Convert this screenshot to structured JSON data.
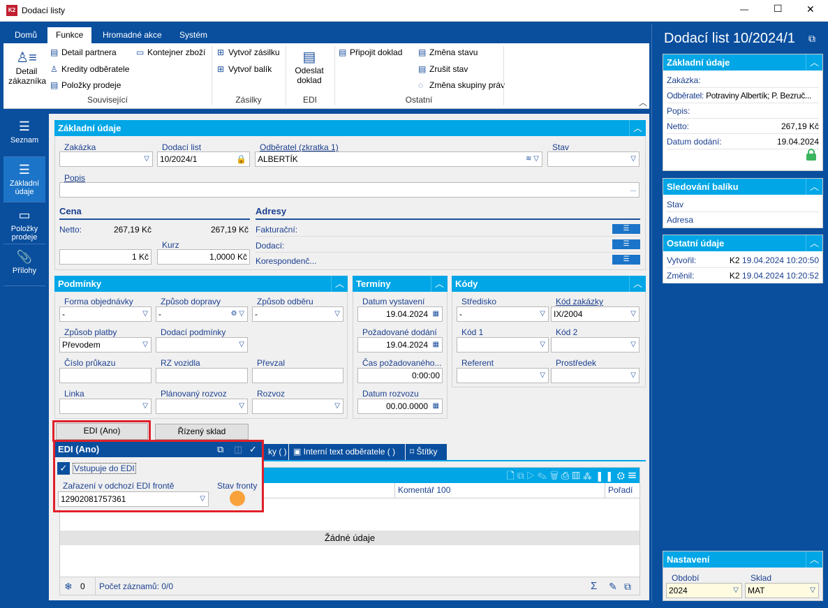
{
  "window": {
    "title": "Dodací listy",
    "controls": {
      "minimize": "—",
      "maximize": "☐",
      "close": "✕"
    }
  },
  "ribbon": {
    "tabs": [
      "Domů",
      "Funkce",
      "Hromadné akce",
      "Systém"
    ],
    "selected_tab": "Funkce",
    "souvisejici": {
      "detail_zakaznika_1": "Detail",
      "detail_zakaznika_2": "zákazníka",
      "detail_partnera": "Detail partnera",
      "kredity": "Kredity odběratele",
      "polozky": "Položky prodeje",
      "kontejner": "Kontejner zboží",
      "group": "Související"
    },
    "zasilky": {
      "vytvor_zasilku": "Vytvoř zásilku",
      "vytvor_balik": "Vytvoř balík",
      "group": "Zásilky"
    },
    "edi": {
      "odeslat_1": "Odeslat",
      "odeslat_2": "doklad",
      "group": "EDI"
    },
    "ostatni": {
      "pripojit": "Připojit doklad",
      "zmena_stavu": "Změna stavu",
      "zrusit_stav": "Zrušit stav",
      "zmena_skupiny": "Změna skupiny práv",
      "group": "Ostatní"
    }
  },
  "leftnav": [
    {
      "label": "Seznam",
      "icon": "menu-icon"
    },
    {
      "label": "Základní údaje",
      "icon": "list-icon",
      "selected": true
    },
    {
      "label": "Položky prodeje",
      "icon": "box-icon"
    },
    {
      "label": "Přílohy",
      "icon": "paperclip-icon"
    }
  ],
  "zakladni": {
    "title": "Základní údaje",
    "zakazka": {
      "label": "Zakázka",
      "value": ""
    },
    "dodaci_list": {
      "label": "Dodací list",
      "value": "10/2024/1"
    },
    "odberatel": {
      "label": "Odběratel (zkratka 1)",
      "value": "ALBERTÍK"
    },
    "stav": {
      "label": "Stav",
      "value": ""
    },
    "popis": {
      "label": "Popis",
      "value": "",
      "more": "..."
    },
    "cena": {
      "title": "Cena",
      "netto_label": "Netto:",
      "netto1": "267,19 Kč",
      "netto2": "267,19 Kč",
      "kurz_label": "Kurz",
      "mena": "1 Kč",
      "kurz": "1,0000 Kč"
    },
    "adresy": {
      "title": "Adresy",
      "fakturacni": "Fakturační:",
      "dodaci": "Dodací:",
      "koresp": "Korespondenč..."
    }
  },
  "podminky": {
    "title": "Podmínky",
    "forma": {
      "label": "Forma objednávky",
      "value": "-"
    },
    "doprava": {
      "label": "Způsob dopravy",
      "value": "-"
    },
    "odber": {
      "label": "Způsob odběru",
      "value": "-"
    },
    "platba": {
      "label": "Způsob platby",
      "value": "Převodem"
    },
    "dod_podminky": {
      "label": "Dodací podmínky",
      "value": ""
    },
    "prukaz": {
      "label": "Číslo průkazu",
      "value": ""
    },
    "rz": {
      "label": "RZ vozidla",
      "value": ""
    },
    "prevzal": {
      "label": "Převzal",
      "value": ""
    },
    "linka": {
      "label": "Linka",
      "value": ""
    },
    "plan_rozvoz": {
      "label": "Plánovaný rozvoz",
      "value": ""
    },
    "rozvoz": {
      "label": "Rozvoz",
      "value": ""
    }
  },
  "terminy": {
    "title": "Termíny",
    "vystaveni": {
      "label": "Datum vystavení",
      "value": "19.04.2024"
    },
    "pozadovane": {
      "label": "Požadované dodání",
      "value": "19.04.2024"
    },
    "cas": {
      "label": "Čas požadovaného...",
      "value": "0:00:00"
    },
    "rozvoz": {
      "label": "Datum rozvozu",
      "value": "00.00.0000"
    }
  },
  "kody": {
    "title": "Kódy",
    "stredisko": {
      "label": "Středisko",
      "value": "-"
    },
    "kod_zakazky": {
      "label": "Kód zakázky",
      "value": "IX/2004"
    },
    "kod1": {
      "label": "Kód 1",
      "value": ""
    },
    "kod2": {
      "label": "Kód 2",
      "value": ""
    },
    "referent": {
      "label": "Referent",
      "value": ""
    },
    "prostredek": {
      "label": "Prostředek",
      "value": ""
    }
  },
  "buttons": {
    "edi": "EDI (Ano)",
    "rizeny_sklad": "Řízený sklad"
  },
  "detail_tabs": [
    "ky ( )",
    "Interní text odběratele ( )",
    "Štítky"
  ],
  "grid": {
    "columns": [
      "Komentář 100",
      "Pořadí"
    ],
    "empty": "Žádné údaje",
    "count": "0",
    "records": "Počet záznamů: 0/0"
  },
  "edi_popup": {
    "title": "EDI (Ano)",
    "checkbox_label": "Vstupuje do EDI",
    "checked": true,
    "zarazeni_label": "Zařazení v odchozí EDI frontě",
    "zarazeni_value": "12902081757361",
    "stav_label": "Stav fronty",
    "stav_color": "#f9a23b"
  },
  "right": {
    "title": "Dodací list 10/2024/1",
    "zakladni": {
      "title": "Základní údaje",
      "zakazka": "Zakázka:",
      "odberatel_k": "Odběratel:",
      "odberatel_v": "Potraviny Albertík; P. Bezruč...",
      "popis": "Popis:",
      "netto_k": "Netto:",
      "netto_v": "267,19 Kč",
      "datum_k": "Datum dodání:",
      "datum_v": "19.04.2024"
    },
    "sledovani": {
      "title": "Sledování balíku",
      "stav": "Stav",
      "adresa": "Adresa"
    },
    "ostatni": {
      "title": "Ostatní údaje",
      "vytvoril_k": "Vytvořil:",
      "vytvoril_u": "K2",
      "vytvoril_v": "19.04.2024 10:20:50",
      "zmenil_k": "Změnil:",
      "zmenil_u": "K2",
      "zmenil_v": "19.04.2024 10:20:52"
    },
    "nastaveni": {
      "title": "Nastavení",
      "obdobi_label": "Období",
      "obdobi": "2024",
      "sklad_label": "Sklad",
      "sklad": "MAT"
    }
  },
  "colors": {
    "dark_blue": "#0a4f9e",
    "header_cyan": "#00a6e6",
    "highlight_red": "#e0202a",
    "lock_green": "#3cb55e"
  }
}
